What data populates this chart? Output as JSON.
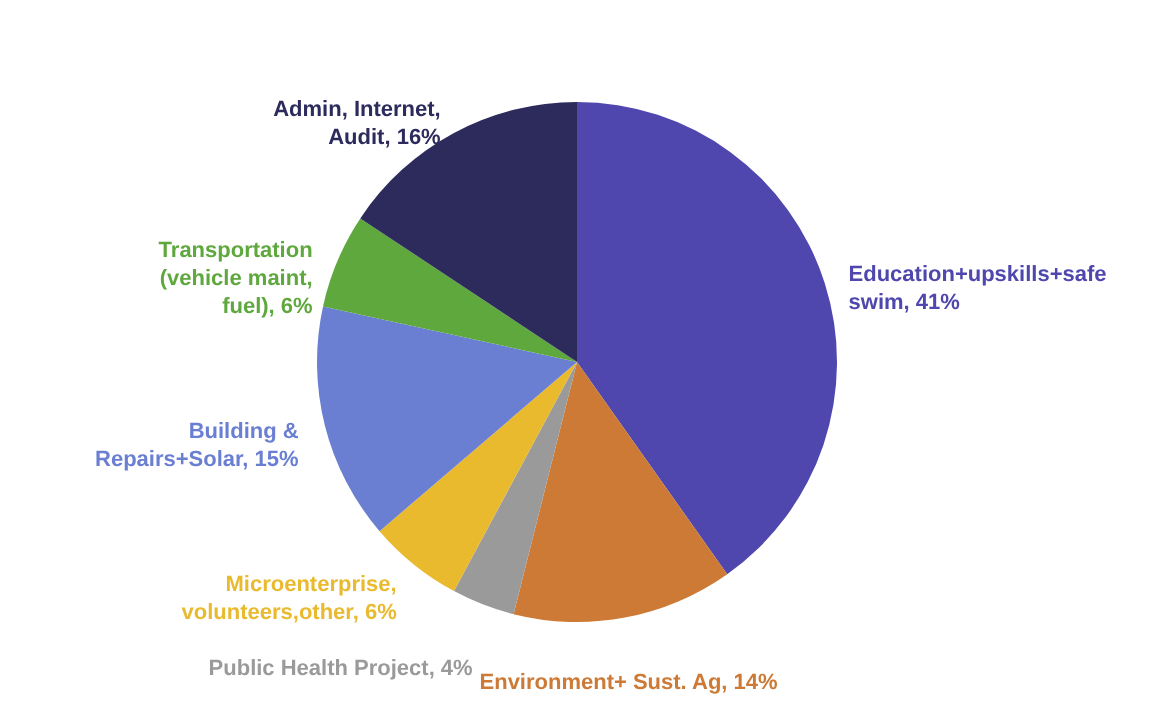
{
  "chart_data": {
    "type": "pie",
    "categories": [
      "Education+upskills+safe swim",
      "Environment+ Sust. Ag",
      "Public Health Project",
      "Microenterprise, volunteers,other",
      "Building & Repairs+Solar",
      "Transportation (vehicle maint, fuel)",
      "Admin, Internet, Audit"
    ],
    "value_labels": [
      "41%",
      "14%",
      "4%",
      "6%",
      "15%",
      "6%",
      "16%"
    ],
    "values": [
      41,
      14,
      4,
      6,
      15,
      6,
      16
    ],
    "colors": [
      "#4f47ad",
      "#cc7a35",
      "#9a9a9a",
      "#e9b92e",
      "#6a7fd2",
      "#5ea83e",
      "#2d2a5c"
    ],
    "data_labels": true
  }
}
